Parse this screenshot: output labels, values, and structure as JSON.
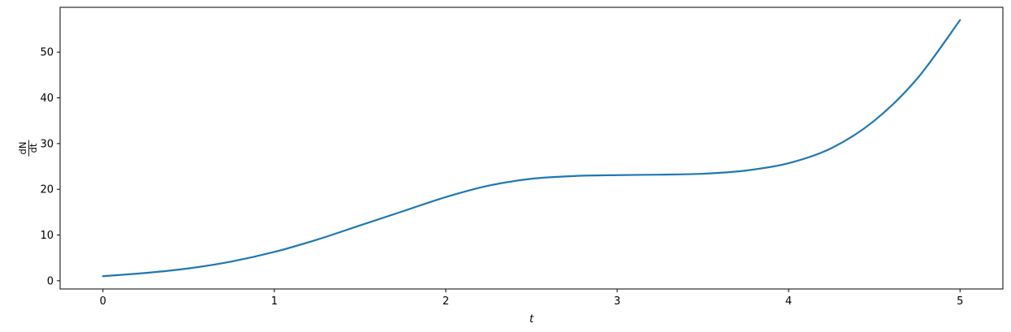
{
  "chart_data": {
    "type": "line",
    "title": "",
    "xlabel": "t",
    "ylabel": {
      "numerator": "dN",
      "denominator": "dt"
    },
    "xlim": [
      -0.25,
      5.25
    ],
    "ylim": [
      -1.8,
      59.8
    ],
    "x_ticks": [
      0,
      1,
      2,
      3,
      4,
      5
    ],
    "y_ticks": [
      0,
      10,
      20,
      30,
      40,
      50
    ],
    "grid": false,
    "legend": "none",
    "series": [
      {
        "color": "#1f77b4",
        "x": [
          0,
          0.25,
          0.5,
          0.75,
          1.0,
          1.25,
          1.5,
          1.75,
          2.0,
          2.25,
          2.5,
          2.75,
          3.0,
          3.25,
          3.5,
          3.75,
          4.0,
          4.25,
          4.5,
          4.75,
          5.0
        ],
        "y": [
          1.0,
          1.7,
          2.7,
          4.2,
          6.3,
          9.0,
          12.1,
          15.2,
          18.3,
          20.8,
          22.3,
          22.9,
          23.1,
          23.2,
          23.4,
          24.1,
          25.7,
          29.0,
          35.0,
          44.2,
          57.0
        ]
      }
    ]
  }
}
